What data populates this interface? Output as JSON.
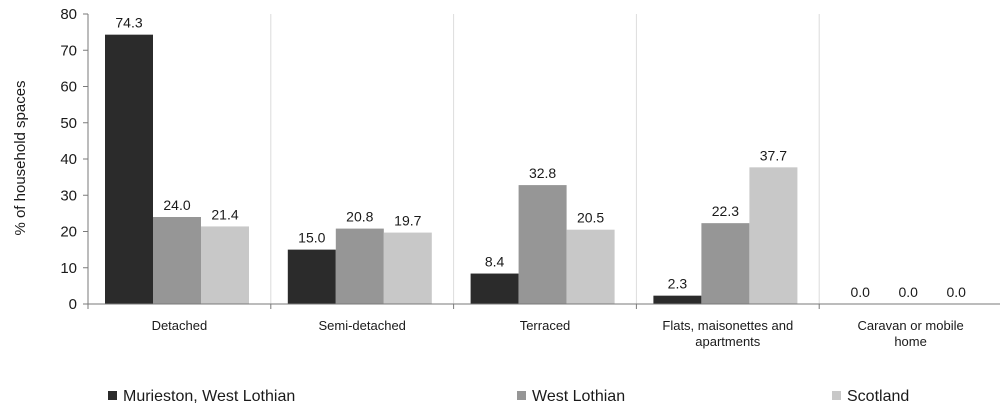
{
  "chart_data": {
    "type": "bar",
    "title": "",
    "xlabel": "",
    "ylabel": "% of household spaces",
    "ylim": [
      0,
      80
    ],
    "yticks": [
      "0",
      "10",
      "20",
      "30",
      "40",
      "50",
      "60",
      "70",
      "80"
    ],
    "grid": "vertical lines between categories",
    "legend_position": "bottom",
    "categories": [
      [
        "Detached"
      ],
      [
        "Semi-detached"
      ],
      [
        "Terraced"
      ],
      [
        "Flats, maisonettes and",
        "apartments"
      ],
      [
        "Caravan or mobile",
        "home"
      ]
    ],
    "series": [
      {
        "name": "Murieston, West Lothian",
        "color": "#2b2b2b",
        "values": [
          74.3,
          15.0,
          8.4,
          2.3,
          0.0
        ],
        "labels": [
          "74.3",
          "15.0",
          "8.4",
          "2.3",
          "0.0"
        ]
      },
      {
        "name": "West Lothian",
        "color": "#969696",
        "values": [
          24.0,
          20.8,
          32.8,
          22.3,
          0.0
        ],
        "labels": [
          "24.0",
          "20.8",
          "32.8",
          "22.3",
          "0.0"
        ]
      },
      {
        "name": "Scotland",
        "color": "#c8c8c8",
        "values": [
          21.4,
          19.7,
          20.5,
          37.7,
          0.0
        ],
        "labels": [
          "21.4",
          "19.7",
          "20.5",
          "37.7",
          "0.0"
        ]
      }
    ]
  }
}
